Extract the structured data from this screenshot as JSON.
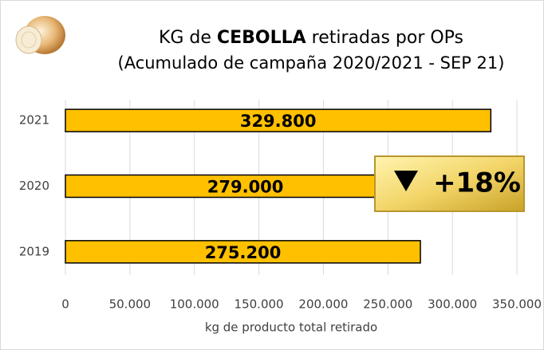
{
  "chart_data": {
    "type": "barh",
    "title": [
      "KG de ",
      "CEBOLLA",
      " retiradas por OPs"
    ],
    "subtitle": "(Acumulado de campaña 2020/2021 - SEP 21)",
    "categories": [
      "2021",
      "2020",
      "2019"
    ],
    "values": [
      329800,
      279000,
      275200
    ],
    "value_labels": [
      "329.800",
      "279.000",
      "275.200"
    ],
    "color": "#ffc000",
    "xlim": [
      0,
      350000
    ],
    "xticks": [
      0,
      {
        "value": 50000,
        "label": "50.000"
      },
      {
        "value": 100000,
        "label": "100.000"
      },
      {
        "value": 150000,
        "label": "150.000"
      },
      {
        "value": 200000,
        "label": "200.000"
      },
      {
        "value": 250000,
        "label": "250.000"
      },
      {
        "value": 300000,
        "label": "300.000"
      },
      {
        "value": 350000,
        "label": "350.000"
      }
    ],
    "xlabel": "kg de producto total retirado",
    "annotation": "+18%",
    "grid": true
  }
}
